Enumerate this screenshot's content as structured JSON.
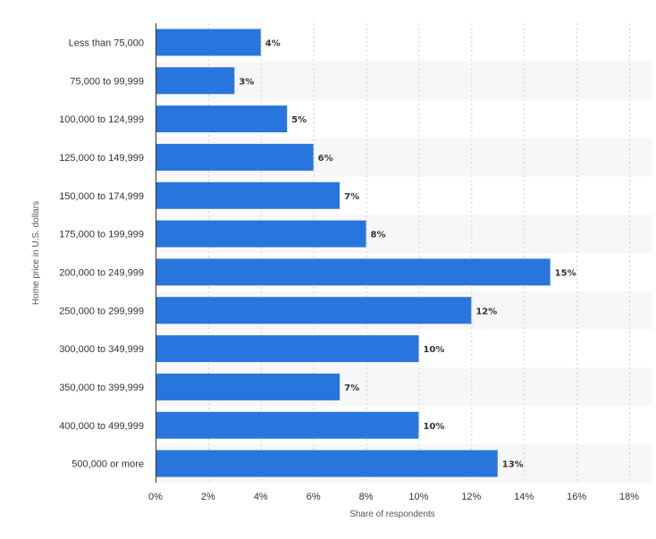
{
  "chart_data": {
    "type": "bar",
    "orientation": "horizontal",
    "categories": [
      "Less than 75,000",
      "75,000 to 99,999",
      "100,000 to 124,999",
      "125,000 to 149,999",
      "150,000 to 174,999",
      "175,000 to 199,999",
      "200,000 to 249,999",
      "250,000 to 299,999",
      "300,000 to 349,999",
      "350,000 to 399,999",
      "400,000 to 499,999",
      "500,000 or more"
    ],
    "values": [
      4,
      3,
      5,
      6,
      7,
      8,
      15,
      12,
      10,
      7,
      10,
      13
    ],
    "data_labels": [
      "4%",
      "3%",
      "5%",
      "6%",
      "7%",
      "8%",
      "15%",
      "12%",
      "10%",
      "7%",
      "10%",
      "13%"
    ],
    "xlabel": "Share of respondents",
    "ylabel": "Home price in U.S. dollars",
    "xlim": [
      0,
      18
    ],
    "xticks": [
      "0%",
      "2%",
      "4%",
      "6%",
      "8%",
      "10%",
      "12%",
      "14%",
      "16%",
      "18%"
    ],
    "grid": "vertical dashed",
    "legend": "none",
    "bar_color": "#2876DD",
    "band_color": "#F7F7F7"
  }
}
